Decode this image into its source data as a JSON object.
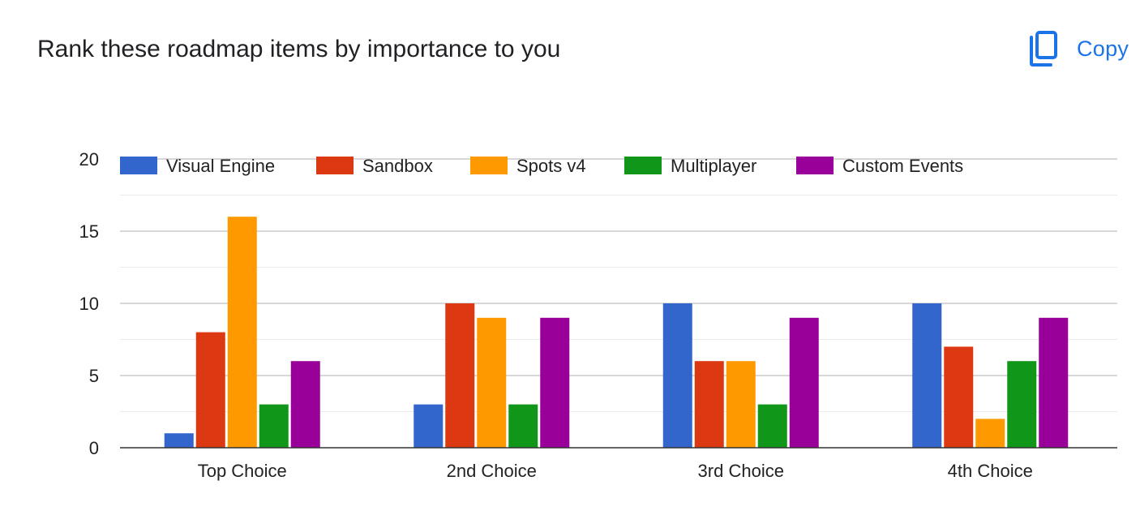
{
  "header": {
    "title": "Rank these roadmap items by importance to you",
    "copy_label": "Copy",
    "copy_icon": "copy-icon",
    "accent_color": "#1a73e8"
  },
  "chart_data": {
    "type": "bar",
    "categories": [
      "Top Choice",
      "2nd Choice",
      "3rd Choice",
      "4th Choice"
    ],
    "series": [
      {
        "name": "Visual Engine",
        "color": "#3366cc",
        "values": [
          1,
          3,
          10,
          10
        ]
      },
      {
        "name": "Sandbox",
        "color": "#dc3912",
        "values": [
          8,
          10,
          6,
          7
        ]
      },
      {
        "name": "Spots v4",
        "color": "#ff9900",
        "values": [
          16,
          9,
          6,
          2
        ]
      },
      {
        "name": "Multiplayer",
        "color": "#109618",
        "values": [
          3,
          3,
          3,
          6
        ]
      },
      {
        "name": "Custom Events",
        "color": "#990099",
        "values": [
          6,
          9,
          9,
          9
        ]
      }
    ],
    "yticks": [
      0,
      5,
      10,
      15,
      20
    ],
    "ylim": [
      0,
      20
    ],
    "legend_position": "top",
    "grid": true
  }
}
